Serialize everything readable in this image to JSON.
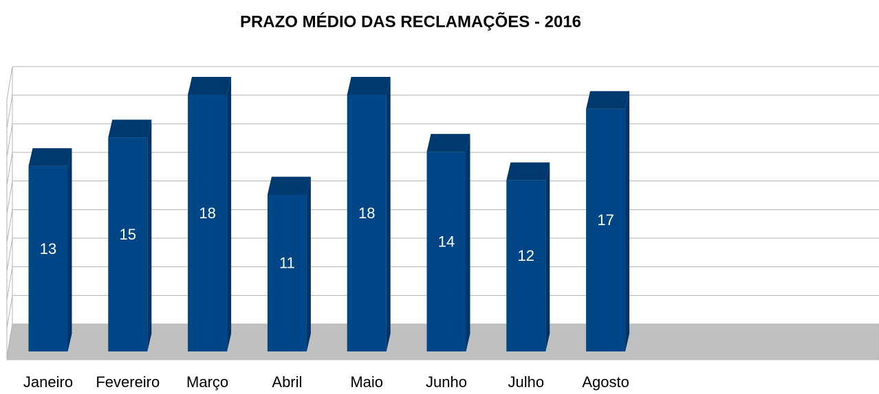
{
  "chart_data": {
    "type": "bar3d",
    "title": "PRAZO MÉDIO DAS RECLAMAÇÕES - 2016",
    "categories": [
      "Janeiro",
      "Fevereiro",
      "Março",
      "Abril",
      "Maio",
      "Junho",
      "Julho",
      "Agosto"
    ],
    "values": [
      13,
      15,
      18,
      11,
      18,
      14,
      12,
      17
    ],
    "color": "#004586",
    "ylim": [
      0,
      18
    ],
    "yticks": [
      0,
      2,
      4,
      6,
      8,
      10,
      12,
      14,
      16,
      18
    ],
    "grid": true
  }
}
